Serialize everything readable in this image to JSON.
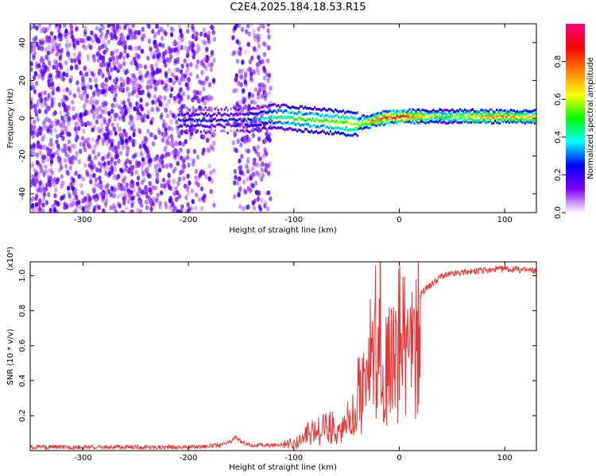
{
  "title": "C2E4.2025.184.18.53.R15",
  "chart_data": [
    {
      "type": "heatmap",
      "xlabel": "Height of straight line (km)",
      "ylabel": "Frequency (Hz)",
      "xlim": [
        -350,
        130
      ],
      "ylim": [
        -50,
        50
      ],
      "x_ticks": [
        -300,
        -200,
        -100,
        0,
        100
      ],
      "y_ticks": [
        -40,
        -20,
        0,
        20,
        40
      ],
      "colorbar": {
        "label": "Normalized spectral amplitude",
        "range": [
          0.0,
          1.0
        ],
        "ticks": [
          "0.0",
          "0.2",
          "0.4",
          "0.6",
          "0.8"
        ],
        "tick_values": [
          0.0,
          0.2,
          0.4,
          0.6,
          0.8
        ]
      },
      "colormap": [
        "#ffffff",
        "#7f00ff",
        "#0000ff",
        "#00ffff",
        "#00ff00",
        "#ffff00",
        "#ff8000",
        "#ff0000",
        "#ff0080"
      ],
      "ridge": [
        {
          "x": -145,
          "f": -1,
          "a": 0.3
        },
        {
          "x": -120,
          "f": 1,
          "a": 0.4
        },
        {
          "x": -100,
          "f": 0,
          "a": 0.5
        },
        {
          "x": -80,
          "f": -1,
          "a": 0.5
        },
        {
          "x": -60,
          "f": -2,
          "a": 0.55
        },
        {
          "x": -40,
          "f": -3,
          "a": 0.6
        },
        {
          "x": -20,
          "f": 0,
          "a": 0.8
        },
        {
          "x": 0,
          "f": 1,
          "a": 0.85
        },
        {
          "x": 40,
          "f": 1,
          "a": 0.5
        },
        {
          "x": 80,
          "f": 1,
          "a": 0.7
        },
        {
          "x": 100,
          "f": 1,
          "a": 0.75
        },
        {
          "x": 130,
          "f": 1,
          "a": 0.6
        }
      ]
    },
    {
      "type": "line",
      "xlabel": "Height of straight line (km)",
      "ylabel": "SNR (10 * v/v)",
      "y_multiplier": "(x10⁴)",
      "xlim": [
        -350,
        130
      ],
      "ylim": [
        0,
        1.08
      ],
      "x_ticks": [
        -300,
        -200,
        -100,
        0,
        100
      ],
      "y_ticks": [
        0.2,
        0.4,
        0.6,
        0.8,
        1.0
      ],
      "color": "#ee3333",
      "series": [
        {
          "x": [
            -350,
            -300,
            -250,
            -200,
            -170,
            -160,
            -155,
            -150,
            -140,
            -120,
            -100,
            -90,
            -80,
            -70,
            -60,
            -50,
            -45,
            -40,
            -35,
            -30,
            -25,
            -20,
            -18,
            -15,
            -10,
            -5,
            0,
            10,
            20,
            30,
            40,
            60,
            80,
            100,
            130
          ],
          "values": [
            0.02,
            0.02,
            0.02,
            0.02,
            0.03,
            0.05,
            0.08,
            0.05,
            0.03,
            0.03,
            0.05,
            0.1,
            0.12,
            0.15,
            0.18,
            0.22,
            0.28,
            0.35,
            0.45,
            0.55,
            0.65,
            0.75,
            0.9,
            0.6,
            0.55,
            0.7,
            0.8,
            0.82,
            0.9,
            0.95,
            1.0,
            1.02,
            1.03,
            1.04,
            1.03
          ]
        }
      ]
    }
  ]
}
